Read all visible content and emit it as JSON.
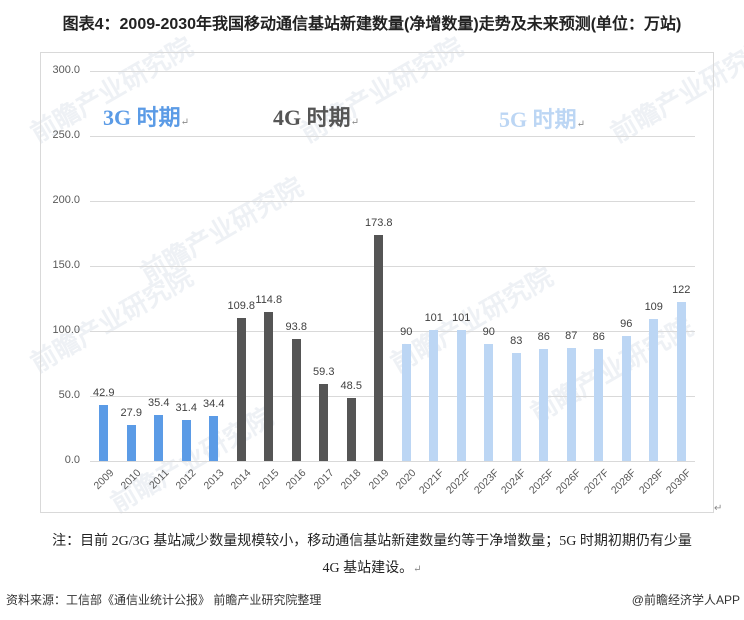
{
  "title": "图表4：2009-2030年我国移动通信基站新建数量(净增数量)走势及未来预测(单位：万站)",
  "eras": [
    {
      "label": "3G 时期",
      "color": "#5b9be6"
    },
    {
      "label": "4G 时期",
      "color": "#555555"
    },
    {
      "label": "5G 时期",
      "color": "#bcd6f4"
    }
  ],
  "return_mark": "↵",
  "watermark": "前瞻产业研究院",
  "note_line1": "注：目前 2G/3G 基站减少数量规模较小，移动通信基站新建数量约等于净增数量；5G 时期初期仍有少量",
  "note_line2": "4G 基站建设。",
  "source": "资料来源：工信部《通信业统计公报》 前瞻产业研究院整理",
  "credit": "@前瞻经济学人APP",
  "colors": {
    "3g": "#5b9be6",
    "4g": "#555555",
    "5g": "#bcd6f4",
    "grid": "#d9d9d9"
  },
  "chart_data": {
    "type": "bar",
    "title": "2009-2030年我国移动通信基站新建数量(净增数量)走势及未来预测(单位：万站)",
    "xlabel": "",
    "ylabel": "万站",
    "ylim": [
      0,
      300
    ],
    "yticks": [
      "0.0",
      "50.0",
      "100.0",
      "150.0",
      "200.0",
      "250.0",
      "300.0"
    ],
    "grid": true,
    "legend": "none",
    "categories": [
      "2009",
      "2010",
      "2011",
      "2012",
      "2013",
      "2014",
      "2015",
      "2016",
      "2017",
      "2018",
      "2019",
      "2020",
      "2021F",
      "2022F",
      "2023F",
      "2024F",
      "2025F",
      "2026F",
      "2027F",
      "2028F",
      "2029F",
      "2030F"
    ],
    "values": [
      42.9,
      27.9,
      35.4,
      31.4,
      34.4,
      109.8,
      114.8,
      93.8,
      59.3,
      48.5,
      173.8,
      90,
      101,
      101,
      90,
      83,
      86,
      87,
      86,
      96,
      109,
      122
    ],
    "value_labels": [
      "42.9",
      "27.9",
      "35.4",
      "31.4",
      "34.4",
      "109.8",
      "114.8",
      "93.8",
      "59.3",
      "48.5",
      "173.8",
      "90",
      "101",
      "101",
      "90",
      "83",
      "86",
      "87",
      "86",
      "96",
      "109",
      "122"
    ],
    "periods": [
      "3G",
      "3G",
      "3G",
      "3G",
      "3G",
      "4G",
      "4G",
      "4G",
      "4G",
      "4G",
      "4G",
      "5G",
      "5G",
      "5G",
      "5G",
      "5G",
      "5G",
      "5G",
      "5G",
      "5G",
      "5G",
      "5G"
    ],
    "annotations": [
      "3G 时期",
      "4G 时期",
      "5G 时期"
    ]
  }
}
